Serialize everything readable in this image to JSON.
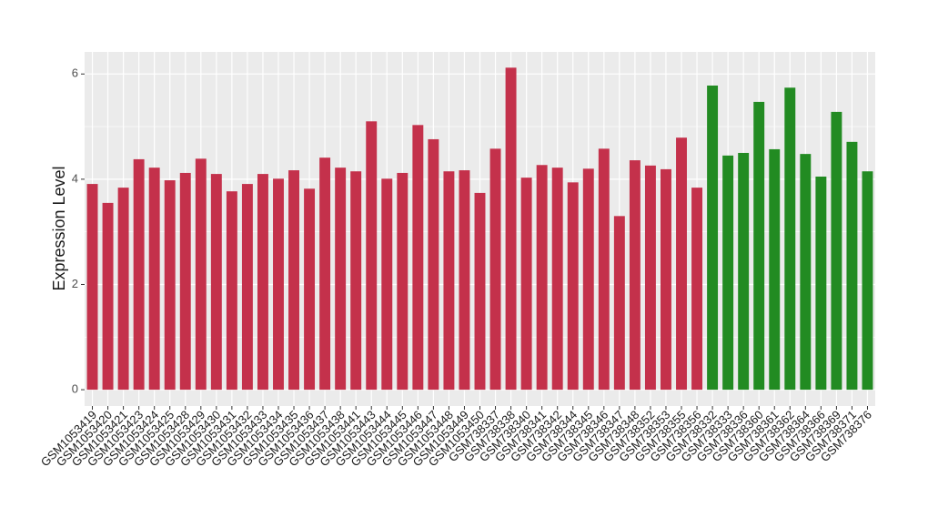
{
  "chart_data": {
    "type": "bar",
    "y_label": "Expression Level",
    "categories": [
      "GSM1053419",
      "GSM1053420",
      "GSM1053421",
      "GSM1053423",
      "GSM1053424",
      "GSM1053425",
      "GSM1053428",
      "GSM1053429",
      "GSM1053430",
      "GSM1053431",
      "GSM1053432",
      "GSM1053433",
      "GSM1053434",
      "GSM1053435",
      "GSM1053436",
      "GSM1053437",
      "GSM1053438",
      "GSM1053441",
      "GSM1053443",
      "GSM1053444",
      "GSM1053445",
      "GSM1053446",
      "GSM1053447",
      "GSM1053448",
      "GSM1053449",
      "GSM1053450",
      "GSM738337",
      "GSM738338",
      "GSM738340",
      "GSM738341",
      "GSM738342",
      "GSM738344",
      "GSM738345",
      "GSM738346",
      "GSM738347",
      "GSM738348",
      "GSM738352",
      "GSM738353",
      "GSM738355",
      "GSM738356",
      "GSM738332",
      "GSM738333",
      "GSM738336",
      "GSM738360",
      "GSM738361",
      "GSM738362",
      "GSM738364",
      "GSM738366",
      "GSM738369",
      "GSM738371",
      "GSM738376"
    ],
    "values": [
      3.91,
      3.55,
      3.84,
      4.38,
      4.22,
      3.98,
      4.12,
      4.39,
      4.1,
      3.77,
      3.91,
      4.1,
      4.01,
      4.17,
      3.82,
      4.41,
      4.22,
      4.15,
      5.1,
      4.01,
      4.12,
      5.03,
      4.76,
      4.15,
      4.17,
      3.74,
      4.58,
      6.12,
      4.03,
      4.27,
      4.22,
      3.94,
      4.2,
      4.58,
      3.3,
      4.36,
      4.26,
      4.19,
      4.79,
      3.84,
      5.78,
      4.45,
      4.5,
      5.47,
      4.57,
      5.74,
      4.48,
      4.05,
      5.28,
      4.71,
      4.15
    ],
    "colors": [
      "#c4314b",
      "#c4314b",
      "#c4314b",
      "#c4314b",
      "#c4314b",
      "#c4314b",
      "#c4314b",
      "#c4314b",
      "#c4314b",
      "#c4314b",
      "#c4314b",
      "#c4314b",
      "#c4314b",
      "#c4314b",
      "#c4314b",
      "#c4314b",
      "#c4314b",
      "#c4314b",
      "#c4314b",
      "#c4314b",
      "#c4314b",
      "#c4314b",
      "#c4314b",
      "#c4314b",
      "#c4314b",
      "#c4314b",
      "#c4314b",
      "#c4314b",
      "#c4314b",
      "#c4314b",
      "#c4314b",
      "#c4314b",
      "#c4314b",
      "#c4314b",
      "#c4314b",
      "#c4314b",
      "#c4314b",
      "#c4314b",
      "#c4314b",
      "#c4314b",
      "#228b22",
      "#228b22",
      "#228b22",
      "#228b22",
      "#228b22",
      "#228b22",
      "#228b22",
      "#228b22",
      "#228b22",
      "#228b22",
      "#228b22"
    ],
    "ylim": [
      -0.31,
      6.42
    ],
    "yticks": [
      0,
      2,
      4,
      6
    ],
    "minor_yticks": [
      1,
      3,
      5
    ],
    "grid": true
  }
}
